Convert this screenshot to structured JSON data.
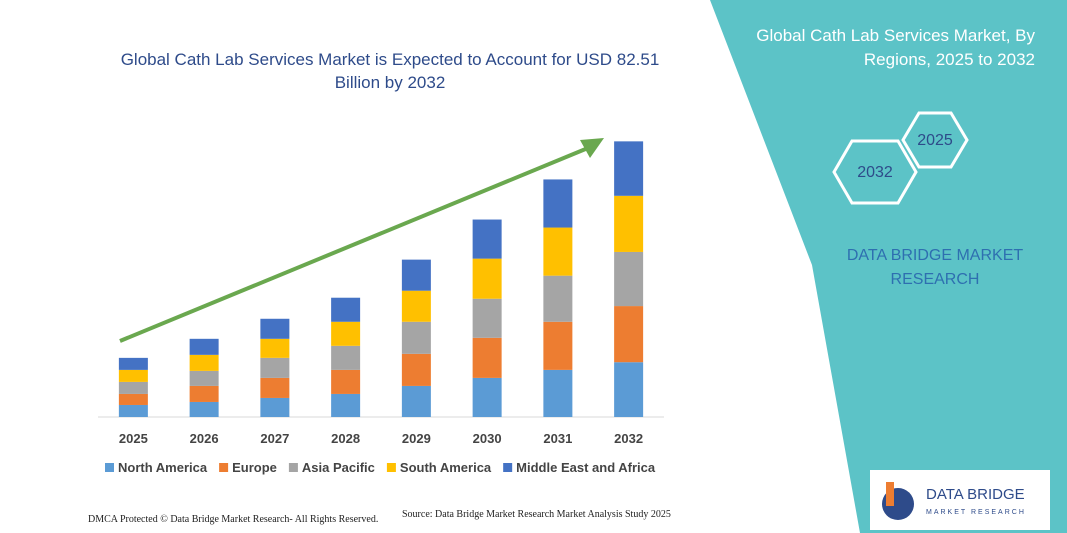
{
  "chart_data": {
    "type": "stacked_bar",
    "title": "Global Cath Lab Services Market is Expected to Account for USD 82.51 Billion by 2032",
    "categories": [
      "2025",
      "2026",
      "2027",
      "2028",
      "2029",
      "2030",
      "2031",
      "2032"
    ],
    "series": [
      {
        "name": "North America",
        "color": "#5b9bd5",
        "values": [
          3.6,
          4.5,
          5.7,
          6.9,
          9.3,
          11.7,
          14.1,
          16.4
        ]
      },
      {
        "name": "Europe",
        "color": "#ed7d31",
        "values": [
          3.3,
          4.8,
          6.0,
          7.2,
          9.6,
          12.0,
          14.4,
          16.8
        ]
      },
      {
        "name": "Asia Pacific",
        "color": "#a5a5a5",
        "values": [
          3.6,
          4.5,
          6.0,
          7.2,
          9.6,
          11.7,
          13.8,
          16.2
        ]
      },
      {
        "name": "South America",
        "color": "#ffc000",
        "values": [
          3.6,
          4.8,
          5.7,
          7.2,
          9.3,
          12.0,
          14.4,
          16.8
        ]
      },
      {
        "name": "Middle East and Africa",
        "color": "#4472c4",
        "values": [
          3.6,
          4.8,
          6.0,
          7.2,
          9.3,
          11.7,
          14.4,
          16.3
        ]
      }
    ],
    "ylim": [
      0,
      85
    ],
    "legend": "bottom"
  },
  "panel": {
    "title": "Global Cath Lab Services Market, By Regions, 2025 to 2032",
    "hex_1": "2025",
    "hex_2": "2032",
    "brand": "DATA BRIDGE MARKET RESEARCH"
  },
  "logo": {
    "name": "DATA BRIDGE",
    "tagline": "MARKET RESEARCH"
  },
  "footer": {
    "left": "DMCA Protected © Data Bridge Market Research- All Rights Reserved.",
    "source": "Source: Data Bridge Market Research Market Analysis Study 2025"
  }
}
